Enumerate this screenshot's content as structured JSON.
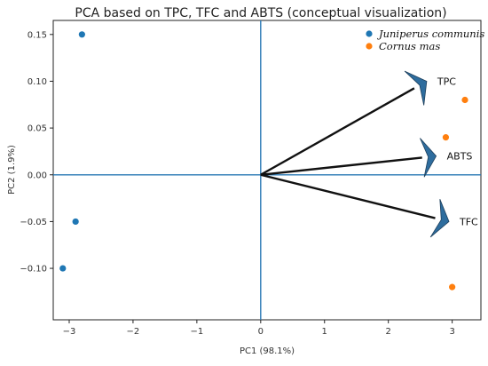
{
  "chart_data": {
    "type": "scatter",
    "title": "PCA based on TPC, TFC and ABTS (conceptual visualization)",
    "xlabel": "PC1 (98.1%)",
    "ylabel": "PC2 (1.9%)",
    "xlim": [
      -3.25,
      3.45
    ],
    "ylim": [
      -0.155,
      0.165
    ],
    "xticks": [
      -3,
      -2,
      -1,
      0,
      1,
      2,
      3
    ],
    "yticks": [
      -0.1,
      -0.05,
      0.0,
      0.05,
      0.1,
      0.15
    ],
    "xtick_labels": [
      "−3",
      "−2",
      "−1",
      "0",
      "1",
      "2",
      "3"
    ],
    "ytick_labels": [
      "−0.10",
      "−0.05",
      "0.00",
      "0.05",
      "0.10",
      "0.15"
    ],
    "grid": false,
    "legend_position": "top-right",
    "reference_lines": {
      "x": 0,
      "y": 0,
      "color": "#2878b5"
    },
    "series": [
      {
        "name": "Juniperus communis",
        "color": "#1f77b4",
        "points": [
          [
            -2.8,
            0.15
          ],
          [
            -2.9,
            -0.05
          ],
          [
            -3.1,
            -0.1
          ]
        ]
      },
      {
        "name": "Cornus mas",
        "color": "#ff7f0e",
        "points": [
          [
            3.2,
            0.08
          ],
          [
            2.9,
            0.04
          ],
          [
            3.0,
            -0.12
          ]
        ]
      }
    ],
    "loadings": [
      {
        "label": "TPC",
        "x": 2.6,
        "y": 0.1
      },
      {
        "label": "ABTS",
        "x": 2.75,
        "y": 0.02
      },
      {
        "label": "TFC",
        "x": 2.95,
        "y": -0.05
      }
    ],
    "arrow_line_color": "#111111",
    "arrow_head_color": "#2e6d9e"
  }
}
